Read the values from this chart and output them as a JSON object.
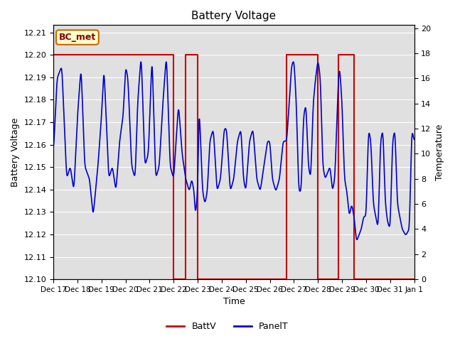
{
  "title": "Battery Voltage",
  "xlabel": "Time",
  "ylabel_left": "Battery Voltage",
  "ylabel_right": "Temperature",
  "ylim_left": [
    12.1,
    12.2133
  ],
  "ylim_right": [
    0,
    20.24
  ],
  "yticks_left": [
    12.1,
    12.11,
    12.12,
    12.13,
    12.14,
    12.15,
    12.16,
    12.17,
    12.18,
    12.19,
    12.2,
    12.21
  ],
  "yticks_right": [
    0,
    2,
    4,
    6,
    8,
    10,
    12,
    14,
    16,
    18,
    20
  ],
  "batt_color": "#cc0000",
  "panel_color": "#0000cc",
  "background_color": "#e0e0e0",
  "figure_bg": "#ffffff",
  "bc_met_label": "BC_met",
  "bc_met_facecolor": "#ffffcc",
  "bc_met_edgecolor": "#cc6600",
  "bc_met_textcolor": "#880000",
  "legend_batt": "BattV",
  "legend_panel": "PanelT",
  "xtick_labels": [
    "Dec 17",
    "Dec 18",
    "Dec 19",
    "Dec 20",
    "Dec 21",
    "Dec 22",
    "Dec 23",
    "Dec 24",
    "Dec 25",
    "Dec 26",
    "Dec 27",
    "Dec 28",
    "Dec 29",
    "Dec 30",
    "Dec 31",
    "Jan 1"
  ],
  "batt_x": [
    0,
    5.0,
    5.0,
    5.5,
    5.5,
    6.0,
    6.0,
    9.7,
    9.7,
    11.0,
    11.0,
    11.85,
    11.85,
    12.5,
    12.5,
    15.0
  ],
  "batt_y": [
    12.2,
    12.2,
    12.1,
    12.1,
    12.2,
    12.2,
    12.1,
    12.1,
    12.2,
    12.2,
    12.1,
    12.1,
    12.2,
    12.2,
    12.1,
    12.1
  ]
}
